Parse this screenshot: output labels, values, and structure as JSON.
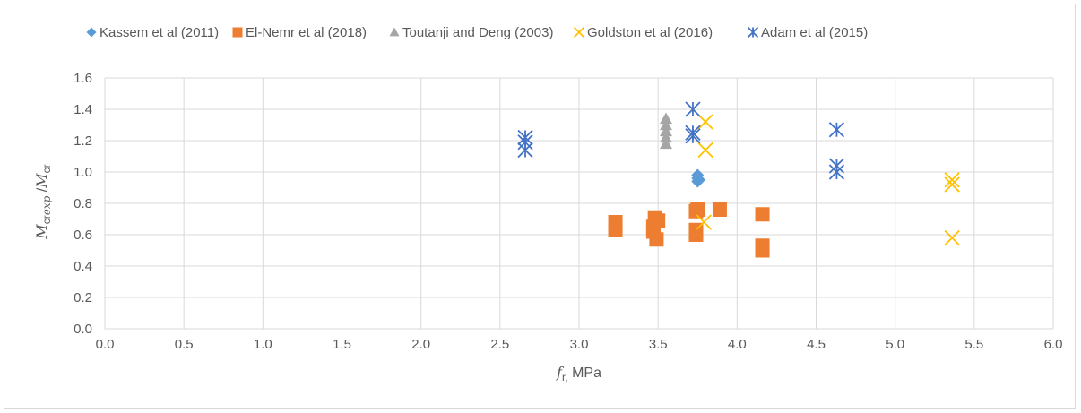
{
  "chart_data": {
    "type": "scatter",
    "xlabel_var": "f",
    "xlabel_sub": "r,",
    "xlabel_unit": " MPa",
    "ylabel_num_var": "M",
    "ylabel_num_sub": "cr",
    "ylabel_num_sub_ital": "exp",
    "ylabel_sep": "  /",
    "ylabel_den_var": "M",
    "ylabel_den_sub": "cr",
    "xlim": [
      0,
      6
    ],
    "ylim": [
      0,
      1.6
    ],
    "x_ticks": [
      "0.0",
      "0.5",
      "1.0",
      "1.5",
      "2.0",
      "2.5",
      "3.0",
      "3.5",
      "4.0",
      "4.5",
      "5.0",
      "5.5",
      "6.0"
    ],
    "y_ticks": [
      "0.0",
      "0.2",
      "0.4",
      "0.6",
      "0.8",
      "1.0",
      "1.2",
      "1.4",
      "1.6"
    ],
    "grid": true,
    "legend_position": "top",
    "series": [
      {
        "name": "Kassem et al (2011)",
        "color": "#5b9bd5",
        "marker": "diamond",
        "points": [
          [
            3.75,
            0.94
          ],
          [
            3.75,
            0.96
          ],
          [
            3.75,
            0.98
          ],
          [
            3.76,
            0.95
          ]
        ]
      },
      {
        "name": "El-Nemr et al (2018)",
        "color": "#ed7d31",
        "marker": "square",
        "points": [
          [
            3.23,
            0.63
          ],
          [
            3.23,
            0.68
          ],
          [
            3.47,
            0.62
          ],
          [
            3.47,
            0.65
          ],
          [
            3.48,
            0.71
          ],
          [
            3.49,
            0.57
          ],
          [
            3.5,
            0.69
          ],
          [
            3.74,
            0.6
          ],
          [
            3.74,
            0.63
          ],
          [
            3.74,
            0.75
          ],
          [
            3.75,
            0.76
          ],
          [
            3.89,
            0.76
          ],
          [
            4.16,
            0.5
          ],
          [
            4.16,
            0.53
          ],
          [
            4.16,
            0.73
          ]
        ]
      },
      {
        "name": "Toutanji and Deng (2003)",
        "color": "#a5a5a5",
        "marker": "triangle",
        "points": [
          [
            3.55,
            1.18
          ],
          [
            3.55,
            1.22
          ],
          [
            3.55,
            1.26
          ],
          [
            3.55,
            1.3
          ],
          [
            3.55,
            1.34
          ]
        ]
      },
      {
        "name": "Goldston et al (2016)",
        "color": "#ffc000",
        "marker": "x",
        "points": [
          [
            3.8,
            1.32
          ],
          [
            3.8,
            1.14
          ],
          [
            3.79,
            0.68
          ],
          [
            5.36,
            0.95
          ],
          [
            5.36,
            0.92
          ],
          [
            5.36,
            0.58
          ]
        ]
      },
      {
        "name": "Adam et al (2015)",
        "color": "#4472c4",
        "marker": "star",
        "points": [
          [
            2.66,
            1.22
          ],
          [
            2.66,
            1.19
          ],
          [
            2.66,
            1.14
          ],
          [
            3.72,
            1.4
          ],
          [
            3.72,
            1.25
          ],
          [
            3.72,
            1.23
          ],
          [
            4.63,
            1.27
          ],
          [
            4.63,
            1.04
          ],
          [
            4.63,
            1.0
          ]
        ]
      }
    ]
  }
}
